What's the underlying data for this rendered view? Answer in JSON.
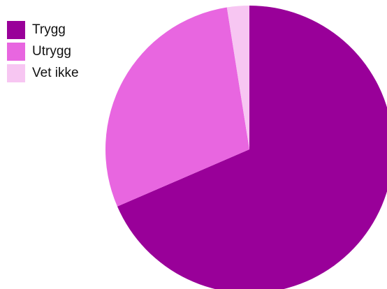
{
  "chart_data": {
    "type": "pie",
    "title": "",
    "legend": {
      "position": "top-left"
    },
    "slices": [
      {
        "label": "Trygg",
        "value": 68.5,
        "color": "#990099"
      },
      {
        "label": "Utrygg",
        "value": 29.0,
        "color": "#E866E0"
      },
      {
        "label": "Vet ikke",
        "value": 2.5,
        "color": "#F7C6F2"
      }
    ]
  }
}
